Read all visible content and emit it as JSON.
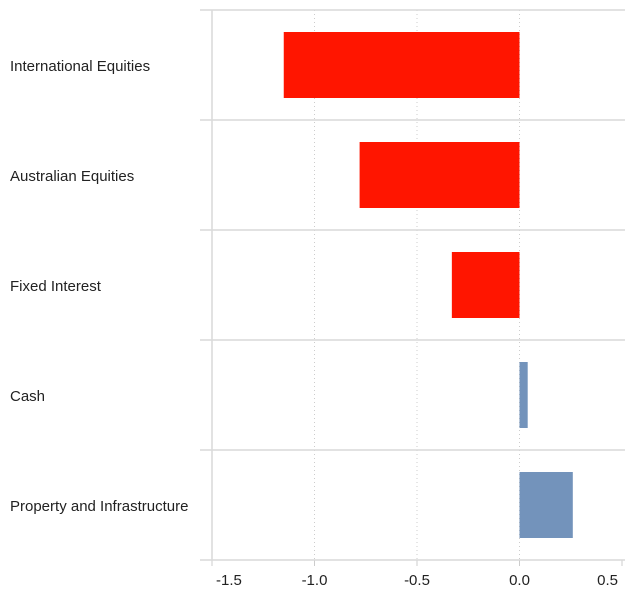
{
  "chart_data": {
    "type": "bar",
    "orientation": "horizontal",
    "categories": [
      "International Equities",
      "Australian Equities",
      "Fixed Interest",
      "Cash",
      "Property and Infrastructure"
    ],
    "values": [
      -1.15,
      -0.78,
      -0.33,
      0.04,
      0.26
    ],
    "colors": [
      "#ff1500",
      "#ff1500",
      "#ff1500",
      "#7393bb",
      "#7393bb"
    ],
    "xlim": [
      -1.5,
      0.5
    ],
    "xticks": [
      -1.5,
      {
        "value": -1.0,
        "label": "-1.0"
      },
      -0.5,
      {
        "value": 0.0,
        "label": "0.0"
      },
      0.5
    ],
    "grid": true
  }
}
